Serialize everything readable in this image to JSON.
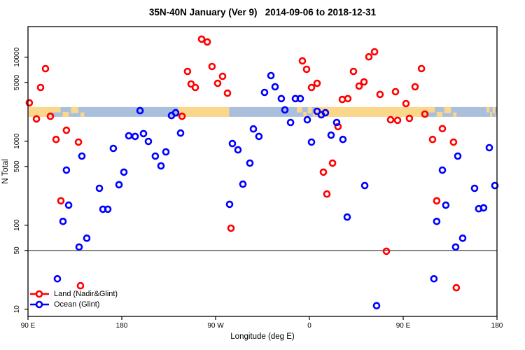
{
  "chart_data": {
    "type": "scatter",
    "title": "35N-40N January (Ver 9)   2014-09-06 to 2018-12-31",
    "xlabel": "Longitude (deg E)",
    "ylabel": "N Total",
    "x_axis": {
      "note": "axis starts at 90E and wraps eastward over 450 degrees",
      "range_deg_from_left": [
        0,
        450
      ],
      "tick_positions_deg": [
        0,
        90,
        180,
        270,
        360,
        450
      ],
      "tick_labels": [
        "90 E",
        "180",
        "90 W",
        "0",
        "90 E",
        "180"
      ]
    },
    "y_axis": {
      "scale": "log10",
      "range": [
        8.5,
        23000
      ],
      "tick_values": [
        10,
        50,
        100,
        500,
        1000,
        5000,
        10000
      ],
      "tick_labels": [
        "10",
        "50",
        "100",
        "500",
        "1000",
        "5000",
        "10000"
      ],
      "label_rotation_deg": -90
    },
    "reference_line_y": 50,
    "grid": false,
    "legend_position": "bottom-left-inside",
    "land_ocean_strip": {
      "description": "map strip showing land(orange)/ocean(blue) along 35N-40N",
      "n_range": [
        1950,
        2550
      ],
      "base": "ocean",
      "land_segments_deg": [
        {
          "from": 0,
          "to": 22,
          "style": "solid"
        },
        {
          "from": 22,
          "to": 55,
          "style": "patchy"
        },
        {
          "from": 144,
          "to": 193,
          "style": "solid"
        },
        {
          "from": 258,
          "to": 276,
          "style": "patchy"
        },
        {
          "from": 276,
          "to": 382,
          "style": "solid"
        },
        {
          "from": 382,
          "to": 412,
          "style": "patchy"
        },
        {
          "from": 440,
          "to": 450,
          "style": "patchy"
        }
      ]
    },
    "series": [
      {
        "name": "Land (Nadir&Glint)",
        "color": "#ff0000",
        "marker": "open-circle",
        "points": [
          [
            1.3,
            2860
          ],
          [
            8.1,
            1840
          ],
          [
            12.1,
            4360
          ],
          [
            16.8,
            7300
          ],
          [
            21.5,
            1980
          ],
          [
            26.9,
            1050
          ],
          [
            31.6,
            195
          ],
          [
            36.9,
            1350
          ],
          [
            48.4,
            975
          ],
          [
            50.4,
            19
          ],
          [
            147.8,
            1980
          ],
          [
            153.1,
            6780
          ],
          [
            156.5,
            4800
          ],
          [
            160.5,
            4360
          ],
          [
            166.6,
            16400
          ],
          [
            172.0,
            15200
          ],
          [
            176.6,
            7750
          ],
          [
            182.0,
            4890
          ],
          [
            186.7,
            5920
          ],
          [
            191.4,
            3730
          ],
          [
            194.8,
            92
          ],
          [
            263.3,
            9040
          ],
          [
            267.3,
            7180
          ],
          [
            272.0,
            4360
          ],
          [
            277.4,
            4890
          ],
          [
            283.4,
            428
          ],
          [
            286.8,
            235
          ],
          [
            292.2,
            548
          ],
          [
            297.5,
            1490
          ],
          [
            301.6,
            3140
          ],
          [
            306.9,
            3210
          ],
          [
            312.3,
            6780
          ],
          [
            317.7,
            4530
          ],
          [
            322.4,
            5080
          ],
          [
            327.1,
            10100
          ],
          [
            332.5,
            11600
          ],
          [
            337.8,
            3600
          ],
          [
            343.9,
            49
          ],
          [
            347.9,
            1800
          ],
          [
            352.6,
            3880
          ],
          [
            354.6,
            1770
          ],
          [
            362.7,
            2800
          ],
          [
            366.0,
            1870
          ],
          [
            371.4,
            4440
          ],
          [
            377.5,
            7320
          ],
          [
            380.8,
            2100
          ],
          [
            388.2,
            1050
          ],
          [
            392.2,
            195
          ],
          [
            397.6,
            1410
          ],
          [
            408.3,
            975
          ],
          [
            411.0,
            18
          ]
        ]
      },
      {
        "name": "Ocean (Glint)",
        "color": "#0000ff",
        "marker": "open-circle",
        "points": [
          [
            28.2,
            23
          ],
          [
            33.6,
            111
          ],
          [
            36.9,
            453
          ],
          [
            39.0,
            173
          ],
          [
            49.0,
            55
          ],
          [
            51.7,
            664
          ],
          [
            56.4,
            70
          ],
          [
            68.5,
            275
          ],
          [
            71.9,
            155
          ],
          [
            76.6,
            155
          ],
          [
            81.9,
            820
          ],
          [
            87.3,
            303
          ],
          [
            92.0,
            428
          ],
          [
            96.7,
            1160
          ],
          [
            102.8,
            1140
          ],
          [
            107.5,
            2310
          ],
          [
            110.8,
            1230
          ],
          [
            115.5,
            994
          ],
          [
            122.2,
            664
          ],
          [
            127.6,
            508
          ],
          [
            132.3,
            745
          ],
          [
            137.7,
            2020
          ],
          [
            141.7,
            2180
          ],
          [
            146.4,
            1250
          ],
          [
            193.4,
            177
          ],
          [
            196.1,
            937
          ],
          [
            201.5,
            789
          ],
          [
            206.2,
            308
          ],
          [
            212.9,
            548
          ],
          [
            216.3,
            1400
          ],
          [
            221.6,
            1140
          ],
          [
            227.0,
            3810
          ],
          [
            233.1,
            6040
          ],
          [
            237.1,
            4440
          ],
          [
            243.1,
            3210
          ],
          [
            246.5,
            2360
          ],
          [
            251.9,
            1670
          ],
          [
            256.6,
            3210
          ],
          [
            261.3,
            3210
          ],
          [
            268.0,
            1800
          ],
          [
            272.0,
            975
          ],
          [
            277.4,
            2270
          ],
          [
            281.4,
            2060
          ],
          [
            285.4,
            2180
          ],
          [
            290.8,
            1180
          ],
          [
            296.2,
            1670
          ],
          [
            302.2,
            1050
          ],
          [
            306.3,
            125
          ],
          [
            323.1,
            296
          ],
          [
            334.5,
            11
          ],
          [
            389.5,
            23
          ],
          [
            392.2,
            111
          ],
          [
            397.6,
            453
          ],
          [
            400.9,
            173
          ],
          [
            410.3,
            55
          ],
          [
            412.4,
            664
          ],
          [
            417.1,
            70
          ],
          [
            428.5,
            275
          ],
          [
            432.5,
            157
          ],
          [
            437.2,
            161
          ],
          [
            442.6,
            836
          ],
          [
            448.0,
            296
          ]
        ]
      }
    ]
  },
  "colors": {
    "land_series": "#ff0000",
    "ocean_series": "#0000ff",
    "strip_land": "#fbd78c",
    "strip_ocean": "#a9bfdc",
    "axis": "#000000",
    "reference_line": "#3c3c3c",
    "background": "#ffffff"
  },
  "legend": {
    "items": [
      {
        "label": "Land (Nadir&Glint)"
      },
      {
        "label": "Ocean (Glint)"
      }
    ]
  }
}
